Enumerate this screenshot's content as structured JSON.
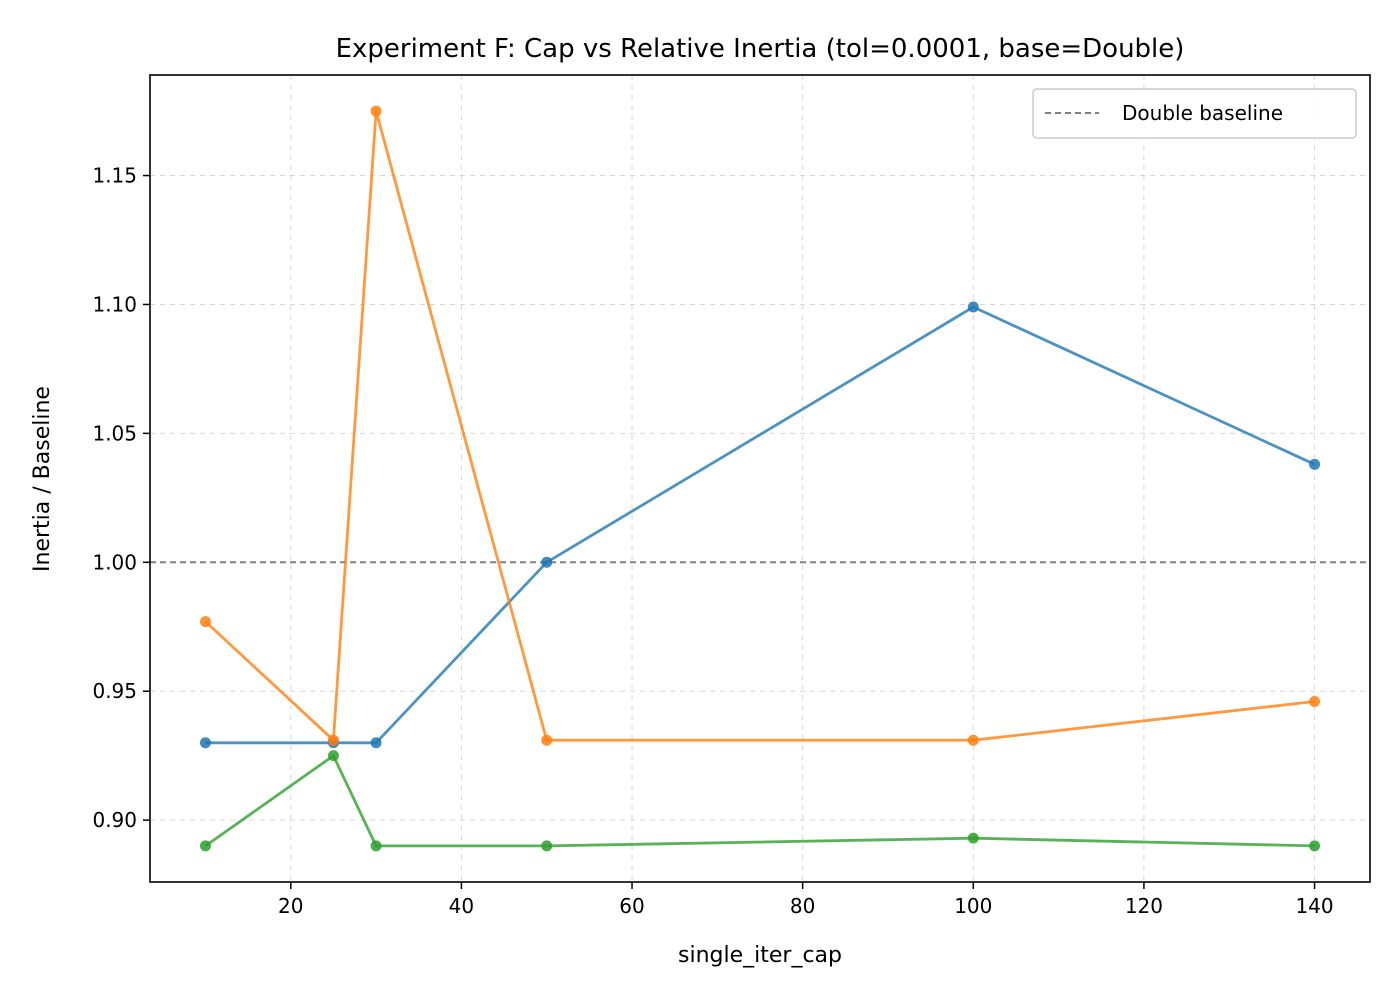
{
  "chart_data": {
    "type": "line",
    "title": "Experiment F: Cap vs Relative Inertia (tol=0.0001, base=Double)",
    "xlabel": "single_iter_cap",
    "ylabel": "Inertia / Baseline",
    "x": [
      10,
      25,
      30,
      50,
      100,
      140
    ],
    "xlim": [
      3.5,
      146.5
    ],
    "ylim": [
      0.876,
      1.189
    ],
    "xticks": [
      20,
      40,
      60,
      80,
      100,
      120,
      140
    ],
    "yticks": [
      0.9,
      0.95,
      1.0,
      1.05,
      1.1,
      1.15
    ],
    "ytick_labels": [
      "0.90",
      "0.95",
      "1.00",
      "1.05",
      "1.10",
      "1.15"
    ],
    "grid": true,
    "legend": {
      "placement": "top-right",
      "entries": [
        {
          "name": "Double baseline",
          "style": "dashed",
          "color": "#808080"
        }
      ]
    },
    "baseline": {
      "value": 1.0,
      "color": "#808080",
      "style": "dashed"
    },
    "series": [
      {
        "color": "#1f77b4",
        "values": [
          0.93,
          0.93,
          0.93,
          1.0,
          1.099,
          1.038
        ]
      },
      {
        "color": "#ff7f0e",
        "values": [
          0.977,
          0.931,
          1.175,
          0.931,
          0.931,
          0.946
        ]
      },
      {
        "color": "#2ca02c",
        "values": [
          0.89,
          0.925,
          0.89,
          0.89,
          0.893,
          0.89
        ]
      }
    ]
  }
}
